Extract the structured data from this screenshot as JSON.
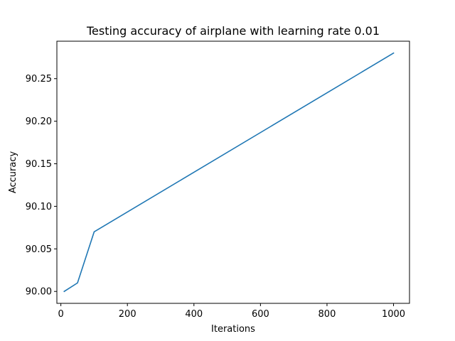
{
  "chart_data": {
    "type": "line",
    "title": "Testing accuracy of airplane with learning rate 0.01",
    "xlabel": "Iterations",
    "ylabel": "Accuracy",
    "xlim": [
      -12,
      1048
    ],
    "ylim": [
      89.986,
      90.294
    ],
    "x_ticks": [
      0,
      200,
      400,
      600,
      800,
      1000
    ],
    "x_tick_labels": [
      "0",
      "200",
      "400",
      "600",
      "800",
      "1000"
    ],
    "y_ticks": [
      90.0,
      90.05,
      90.1,
      90.15,
      90.2,
      90.25
    ],
    "y_tick_labels": [
      "90.00",
      "90.05",
      "90.10",
      "90.15",
      "90.20",
      "90.25"
    ],
    "grid": false,
    "series": [
      {
        "color": "#1f77b4",
        "x": [
          10,
          50,
          100,
          1000
        ],
        "y": [
          90.0,
          90.01,
          90.07,
          90.28
        ]
      }
    ]
  }
}
